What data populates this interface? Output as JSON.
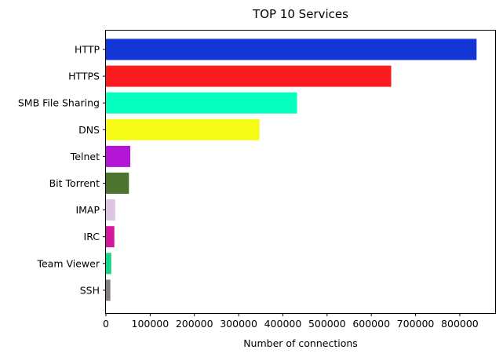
{
  "chart_data": {
    "type": "bar",
    "orientation": "horizontal",
    "title": "TOP 10 Services",
    "xlabel": "Number of connections",
    "ylabel": "",
    "categories": [
      "HTTP",
      "HTTPS",
      "SMB File Sharing",
      "DNS",
      "Telnet",
      "Bit Torrent",
      "IMAP",
      "IRC",
      "Team Viewer",
      "SSH"
    ],
    "values": [
      838000,
      645000,
      432000,
      347000,
      55000,
      52000,
      21000,
      19000,
      12000,
      10000
    ],
    "colors": [
      "#1536d6",
      "#fb1c1f",
      "#05ffbf",
      "#f6fb16",
      "#b416d6",
      "#4c7330",
      "#dcc5e1",
      "#d4189d",
      "#15d688",
      "#857f7c"
    ],
    "xlim": [
      0,
      880000
    ],
    "xticks": [
      0,
      100000,
      200000,
      300000,
      400000,
      500000,
      600000,
      700000,
      800000
    ],
    "xtick_labels": [
      "0",
      "100000",
      "200000",
      "300000",
      "400000",
      "500000",
      "600000",
      "700000",
      "800000"
    ],
    "grid": false,
    "legend": "none"
  }
}
